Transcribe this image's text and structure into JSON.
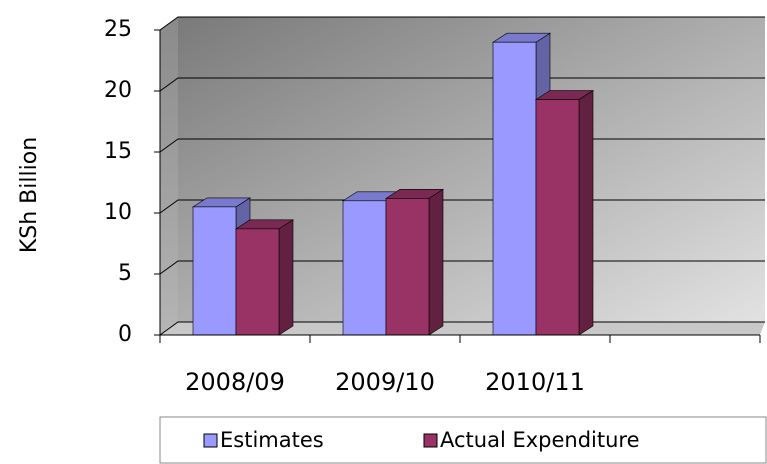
{
  "chart_data": {
    "type": "bar",
    "y_label": "KSh Billion",
    "categories": [
      "2008/09",
      "2009/10",
      "2010/11",
      null
    ],
    "series": [
      {
        "name": "Estimates",
        "color": "#9999ff",
        "values": [
          10.5,
          11,
          24,
          null
        ]
      },
      {
        "name": "Actual Expenditure",
        "color": "#993366",
        "values": [
          8.7,
          11.2,
          19.3,
          null
        ]
      }
    ],
    "ylim": [
      0,
      25
    ],
    "yticks": [
      0,
      5,
      10,
      15,
      20,
      25
    ],
    "grid": true,
    "legend": "bottom"
  }
}
